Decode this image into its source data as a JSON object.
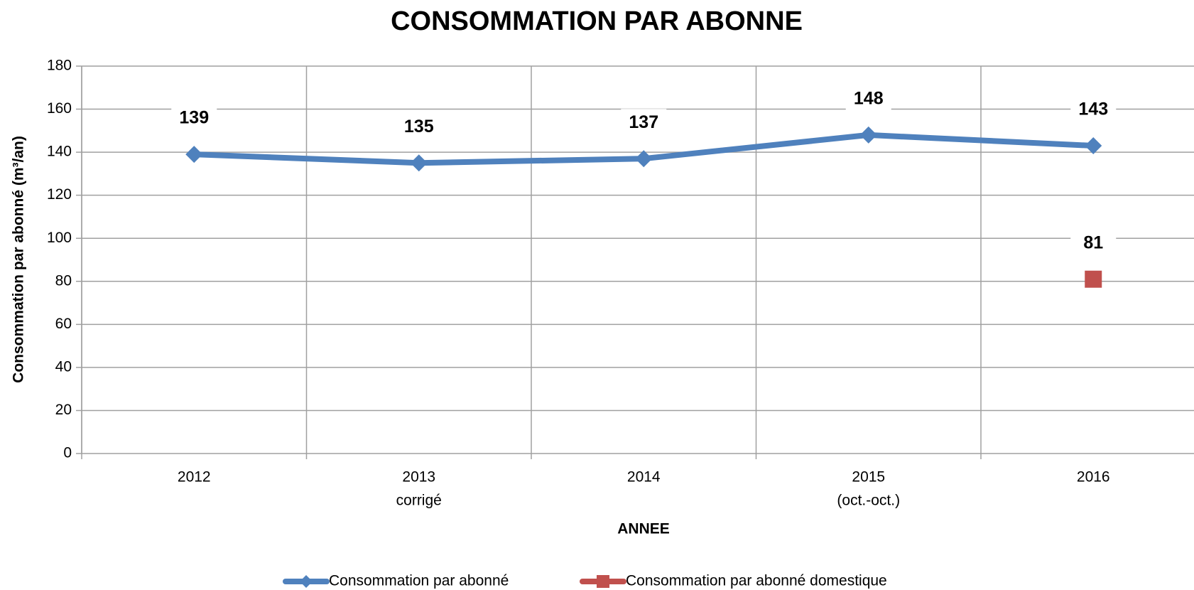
{
  "chart_data": {
    "type": "line",
    "title": "CONSOMMATION PAR ABONNE",
    "x_label": "ANNEE",
    "y_label": "Consommation par  abonné (m³/an)",
    "categories": [
      [
        "2012"
      ],
      [
        "2013",
        "corrigé"
      ],
      [
        "2014"
      ],
      [
        "2015",
        "(oct.-oct.)"
      ],
      [
        "2016"
      ]
    ],
    "series": [
      {
        "name": "Consommation par abonné",
        "color": "#4f81bd",
        "marker": "diamond",
        "values": [
          139,
          135,
          137,
          148,
          143
        ]
      },
      {
        "name": "Consommation par abonné domestique",
        "color": "#c0504d",
        "marker": "square",
        "values": [
          null,
          null,
          null,
          null,
          81
        ]
      }
    ],
    "ylim": [
      0,
      180
    ],
    "yticks": [
      0,
      20,
      40,
      60,
      80,
      100,
      120,
      140,
      160,
      180
    ],
    "grid": true,
    "legend": "bottom"
  }
}
